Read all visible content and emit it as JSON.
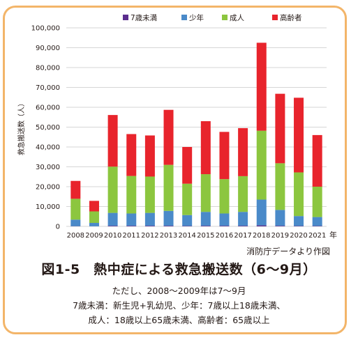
{
  "chart_data": {
    "type": "bar",
    "stacked": true,
    "ylabel": "救急搬送数（人）",
    "xunit": "年",
    "ylim": [
      0,
      100000
    ],
    "yticks": [
      "0",
      "10,000",
      "20,000",
      "30,000",
      "40,000",
      "50,000",
      "60,000",
      "70,000",
      "80,000",
      "90,000",
      "100,000"
    ],
    "categories": [
      "2008",
      "2009",
      "2010",
      "2011",
      "2012",
      "2013",
      "2014",
      "2015",
      "2016",
      "2017",
      "2018",
      "2019",
      "2020",
      "2021"
    ],
    "legend_position": "top-right",
    "series": [
      {
        "name": "7歳未満",
        "color": "#5b2d8e",
        "values": [
          100,
          50,
          300,
          300,
          300,
          300,
          200,
          300,
          300,
          300,
          500,
          300,
          200,
          200
        ]
      },
      {
        "name": "少年",
        "color": "#4a8ac9",
        "values": [
          3300,
          1700,
          6500,
          6200,
          6500,
          7500,
          5500,
          7000,
          6200,
          7000,
          13000,
          8000,
          5000,
          4500
        ]
      },
      {
        "name": "成人",
        "color": "#8cc63f",
        "values": [
          10500,
          5800,
          23300,
          18900,
          18300,
          23200,
          15800,
          19000,
          17300,
          18000,
          34700,
          23500,
          22000,
          15300
        ]
      },
      {
        "name": "高齢者",
        "color": "#e8242c",
        "values": [
          9000,
          5300,
          26000,
          21100,
          20700,
          27700,
          18500,
          26700,
          23800,
          24200,
          44300,
          35000,
          37600,
          26000
        ]
      }
    ]
  },
  "source": "消防庁データより作図",
  "title": "図1-5　熱中症による救急搬送数（6〜9月）",
  "notes": [
    "ただし、2008〜2009年は7〜9月",
    "7歳未満：新生児+乳幼児、少年：7歳以上18歳未満、",
    "成人：18歳以上65歳未満、高齢者：65歳以上"
  ]
}
